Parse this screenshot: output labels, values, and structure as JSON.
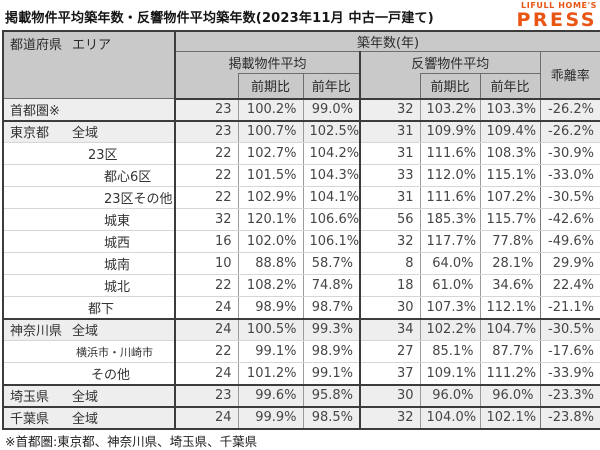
{
  "title": "掲載物件平均築年数・反響物件平均築年数(2023年11月 中古一戸建て)",
  "logo": {
    "top": "LIFULL HOME'S",
    "main": "PRESS",
    "color": "#e95513"
  },
  "footnote": "※首都圏:東京都、神奈川県、埼玉県、千葉県",
  "table": {
    "header": {
      "pref_label": "都道府県",
      "area_label": "エリア",
      "group": "築年数(年)",
      "listed": "掲載物件平均",
      "response": "反響物件平均",
      "deviation": "乖離率",
      "prev_period": "前期比",
      "prev_year": "前年比"
    },
    "rows": [
      {
        "pref": "首都圏※",
        "area": "",
        "level": 0,
        "shaded": true,
        "group_end": true,
        "small": false,
        "cells": [
          "23",
          "100.2%",
          "99.0%",
          "32",
          "103.2%",
          "103.3%",
          "-26.2%"
        ]
      },
      {
        "pref": "東京都",
        "area": "全域",
        "level": 0,
        "shaded": true,
        "group_end": false,
        "small": false,
        "cells": [
          "23",
          "100.7%",
          "102.5%",
          "31",
          "109.9%",
          "109.4%",
          "-26.2%"
        ]
      },
      {
        "pref": "",
        "area": "23区",
        "level": 1,
        "shaded": false,
        "group_end": false,
        "small": false,
        "cells": [
          "22",
          "102.7%",
          "104.2%",
          "31",
          "111.6%",
          "108.3%",
          "-30.9%"
        ]
      },
      {
        "pref": "",
        "area": "都心6区",
        "level": 2,
        "shaded": false,
        "group_end": false,
        "small": false,
        "cells": [
          "22",
          "101.5%",
          "104.3%",
          "33",
          "112.0%",
          "115.1%",
          "-33.0%"
        ]
      },
      {
        "pref": "",
        "area": "23区その他",
        "level": 2,
        "shaded": false,
        "group_end": false,
        "small": false,
        "cells": [
          "22",
          "102.9%",
          "104.1%",
          "31",
          "111.6%",
          "107.2%",
          "-30.5%"
        ]
      },
      {
        "pref": "",
        "area": "城東",
        "level": 2,
        "shaded": false,
        "group_end": false,
        "small": false,
        "cells": [
          "32",
          "120.1%",
          "106.6%",
          "56",
          "185.3%",
          "115.7%",
          "-42.6%"
        ]
      },
      {
        "pref": "",
        "area": "城西",
        "level": 2,
        "shaded": false,
        "group_end": false,
        "small": false,
        "cells": [
          "16",
          "102.0%",
          "106.1%",
          "32",
          "117.7%",
          "77.8%",
          "-49.6%"
        ]
      },
      {
        "pref": "",
        "area": "城南",
        "level": 2,
        "shaded": false,
        "group_end": false,
        "small": false,
        "cells": [
          "10",
          "88.8%",
          "58.7%",
          "8",
          "64.0%",
          "28.1%",
          "29.9%"
        ]
      },
      {
        "pref": "",
        "area": "城北",
        "level": 2,
        "shaded": false,
        "group_end": false,
        "small": false,
        "cells": [
          "22",
          "108.2%",
          "74.8%",
          "18",
          "61.0%",
          "34.6%",
          "22.4%"
        ]
      },
      {
        "pref": "",
        "area": "都下",
        "level": 1,
        "shaded": false,
        "group_end": true,
        "small": false,
        "cells": [
          "24",
          "98.9%",
          "98.7%",
          "30",
          "107.3%",
          "112.1%",
          "-21.1%"
        ]
      },
      {
        "pref": "神奈川県",
        "area": "全域",
        "level": 0,
        "shaded": true,
        "group_end": false,
        "small": false,
        "cells": [
          "24",
          "100.5%",
          "99.3%",
          "34",
          "102.2%",
          "104.7%",
          "-30.5%"
        ]
      },
      {
        "pref": "",
        "area": "横浜市・川崎市",
        "level": 3,
        "shaded": false,
        "group_end": false,
        "small": true,
        "cells": [
          "22",
          "99.1%",
          "98.9%",
          "27",
          "85.1%",
          "87.7%",
          "-17.6%"
        ]
      },
      {
        "pref": "",
        "area": "その他",
        "level": 4,
        "shaded": false,
        "group_end": true,
        "small": false,
        "cells": [
          "24",
          "101.2%",
          "99.1%",
          "37",
          "109.1%",
          "111.2%",
          "-33.9%"
        ]
      },
      {
        "pref": "埼玉県",
        "area": "全域",
        "level": 0,
        "shaded": true,
        "group_end": true,
        "small": false,
        "cells": [
          "23",
          "99.6%",
          "95.8%",
          "30",
          "96.0%",
          "96.0%",
          "-23.3%"
        ]
      },
      {
        "pref": "千葉県",
        "area": "全域",
        "level": 0,
        "shaded": true,
        "group_end": false,
        "small": false,
        "cells": [
          "24",
          "99.9%",
          "98.5%",
          "32",
          "104.0%",
          "102.1%",
          "-23.8%"
        ]
      }
    ]
  }
}
